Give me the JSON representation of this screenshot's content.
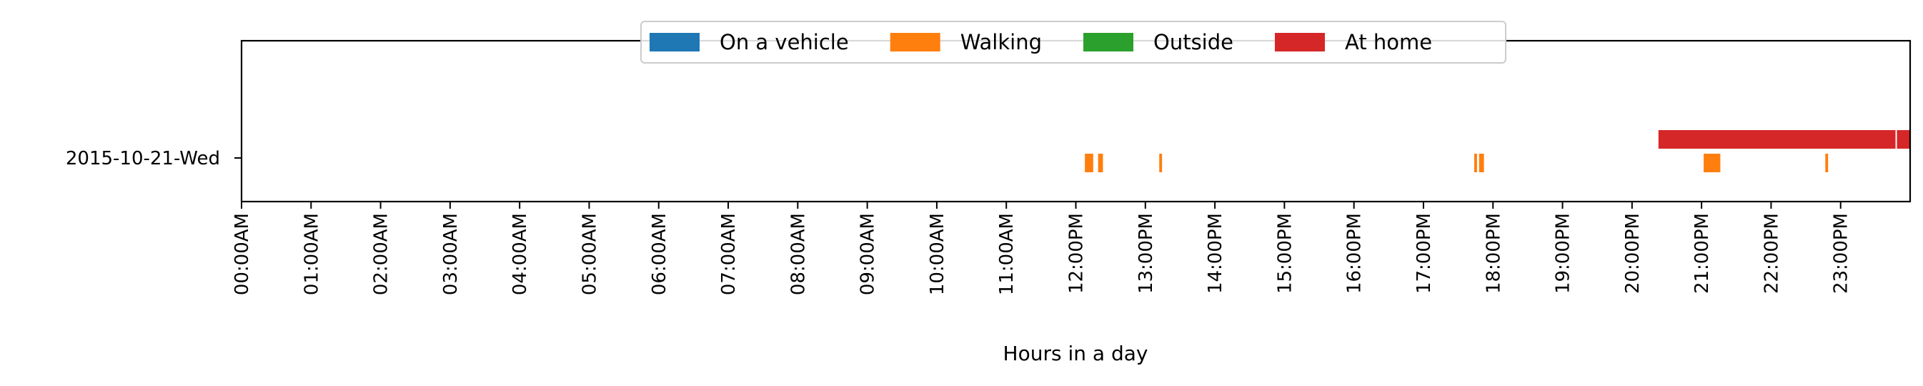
{
  "chart_data": {
    "type": "bar",
    "orientation": "horizontal-timeline",
    "title": "",
    "xlabel": "Hours in a day",
    "ylabel": "",
    "xlim": [
      0,
      24
    ],
    "grid": false,
    "legend_placement": "top-center",
    "categories": [
      "2015-10-21-Wed"
    ],
    "x_ticks": [
      {
        "value": 0,
        "label": "00:00AM"
      },
      {
        "value": 1,
        "label": "01:00AM"
      },
      {
        "value": 2,
        "label": "02:00AM"
      },
      {
        "value": 3,
        "label": "03:00AM"
      },
      {
        "value": 4,
        "label": "04:00AM"
      },
      {
        "value": 5,
        "label": "05:00AM"
      },
      {
        "value": 6,
        "label": "06:00AM"
      },
      {
        "value": 7,
        "label": "07:00AM"
      },
      {
        "value": 8,
        "label": "08:00AM"
      },
      {
        "value": 9,
        "label": "09:00AM"
      },
      {
        "value": 10,
        "label": "10:00AM"
      },
      {
        "value": 11,
        "label": "11:00AM"
      },
      {
        "value": 12,
        "label": "12:00PM"
      },
      {
        "value": 13,
        "label": "13:00PM"
      },
      {
        "value": 14,
        "label": "14:00PM"
      },
      {
        "value": 15,
        "label": "15:00PM"
      },
      {
        "value": 16,
        "label": "16:00PM"
      },
      {
        "value": 17,
        "label": "17:00PM"
      },
      {
        "value": 18,
        "label": "18:00PM"
      },
      {
        "value": 19,
        "label": "19:00PM"
      },
      {
        "value": 20,
        "label": "20:00PM"
      },
      {
        "value": 21,
        "label": "21:00PM"
      },
      {
        "value": 22,
        "label": "22:00PM"
      },
      {
        "value": 23,
        "label": "23:00PM"
      }
    ],
    "series": [
      {
        "name": "On a vehicle",
        "color": "#1f77b4",
        "lane": 1,
        "intervals": []
      },
      {
        "name": "Walking",
        "color": "#ff7f0e",
        "lane": 0,
        "intervals": [
          [
            12.13,
            12.25
          ],
          [
            12.32,
            12.39
          ],
          [
            13.2,
            13.24
          ],
          [
            17.73,
            17.77
          ],
          [
            17.8,
            17.87
          ],
          [
            21.03,
            21.27
          ],
          [
            22.78,
            22.82
          ]
        ]
      },
      {
        "name": "Outside",
        "color": "#2ca02c",
        "lane": 2,
        "intervals": []
      },
      {
        "name": "At home",
        "color": "#d62728",
        "lane": 1,
        "intervals": [
          [
            20.38,
            23.79
          ],
          [
            23.81,
            24.0
          ]
        ]
      }
    ]
  }
}
